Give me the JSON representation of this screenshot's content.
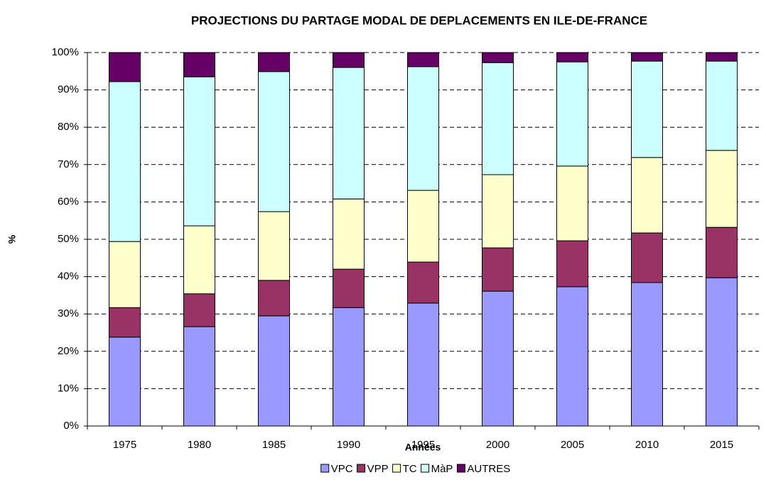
{
  "chart_data": {
    "type": "stacked-bar",
    "title": "PROJECTIONS DU PARTAGE MODAL DE DEPLACEMENTS EN ILE-DE-FRANCE",
    "x_label": "Années",
    "y_label": "%",
    "categories": [
      "1975",
      "1980",
      "1985",
      "1990",
      "1995",
      "2000",
      "2005",
      "2010",
      "2015"
    ],
    "series": [
      {
        "name": "VPC",
        "color": "#9999ff",
        "values": [
          23.8,
          26.6,
          29.5,
          31.7,
          32.9,
          36.1,
          37.3,
          38.4,
          39.7
        ]
      },
      {
        "name": "VPP",
        "color": "#993366",
        "values": [
          7.9,
          8.8,
          9.5,
          10.3,
          11.0,
          11.6,
          12.3,
          13.3,
          13.5
        ]
      },
      {
        "name": "TC",
        "color": "#ffffcc",
        "values": [
          17.7,
          18.2,
          18.4,
          18.8,
          19.2,
          19.6,
          20.0,
          20.2,
          20.6
        ]
      },
      {
        "name": "MàP",
        "color": "#ccffff",
        "values": [
          42.8,
          39.9,
          37.5,
          35.2,
          33.1,
          30.0,
          27.9,
          25.8,
          23.9
        ]
      },
      {
        "name": "AUTRES",
        "color": "#660066",
        "values": [
          7.8,
          6.5,
          5.1,
          4.0,
          3.8,
          2.7,
          2.5,
          2.3,
          2.3
        ]
      }
    ],
    "ylim": [
      0,
      100
    ],
    "yticks": [
      {
        "value": 0,
        "label": "0%"
      },
      {
        "value": 10,
        "label": "10%"
      },
      {
        "value": 20,
        "label": "20%"
      },
      {
        "value": 30,
        "label": "30%"
      },
      {
        "value": 40,
        "label": "40%"
      },
      {
        "value": 50,
        "label": "50%"
      },
      {
        "value": 60,
        "label": "60%"
      },
      {
        "value": 70,
        "label": "70%"
      },
      {
        "value": 80,
        "label": "80%"
      },
      {
        "value": 90,
        "label": "90%"
      },
      {
        "value": 100,
        "label": "100%"
      }
    ],
    "grid": true,
    "legend": "bottom"
  }
}
